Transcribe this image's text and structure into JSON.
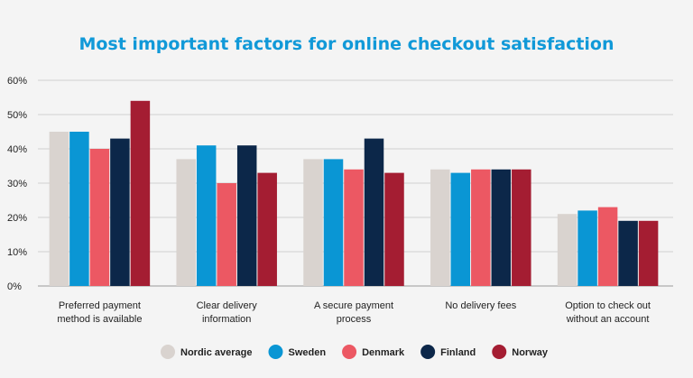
{
  "chart_data": {
    "type": "bar",
    "title": "Most important factors for online checkout satisfaction",
    "categories": [
      [
        "Preferred payment",
        "method is available"
      ],
      [
        "Clear delivery",
        "information"
      ],
      [
        "A secure payment",
        "process"
      ],
      [
        "No delivery fees"
      ],
      [
        "Option to check out",
        "without an account"
      ]
    ],
    "series": [
      {
        "name": "Nordic average",
        "color": "#d9d3cf",
        "values": [
          45,
          37,
          37,
          34,
          21
        ]
      },
      {
        "name": "Sweden",
        "color": "#0a96d4",
        "values": [
          45,
          41,
          37,
          33,
          22
        ]
      },
      {
        "name": "Denmark",
        "color": "#ec5863",
        "values": [
          40,
          30,
          34,
          34,
          23
        ]
      },
      {
        "name": "Finland",
        "color": "#0c2749",
        "values": [
          43,
          41,
          43,
          34,
          19
        ]
      },
      {
        "name": "Norway",
        "color": "#a41d32",
        "values": [
          54,
          33,
          33,
          34,
          19
        ]
      }
    ],
    "ylim": [
      0,
      60
    ],
    "yticks": [
      "0%",
      "10%",
      "20%",
      "30%",
      "40%",
      "50%",
      "60%"
    ],
    "ytick_values": [
      0,
      10,
      20,
      30,
      40,
      50,
      60
    ],
    "grid": true,
    "legend_position": "bottom",
    "title_color": "#1199d8"
  }
}
